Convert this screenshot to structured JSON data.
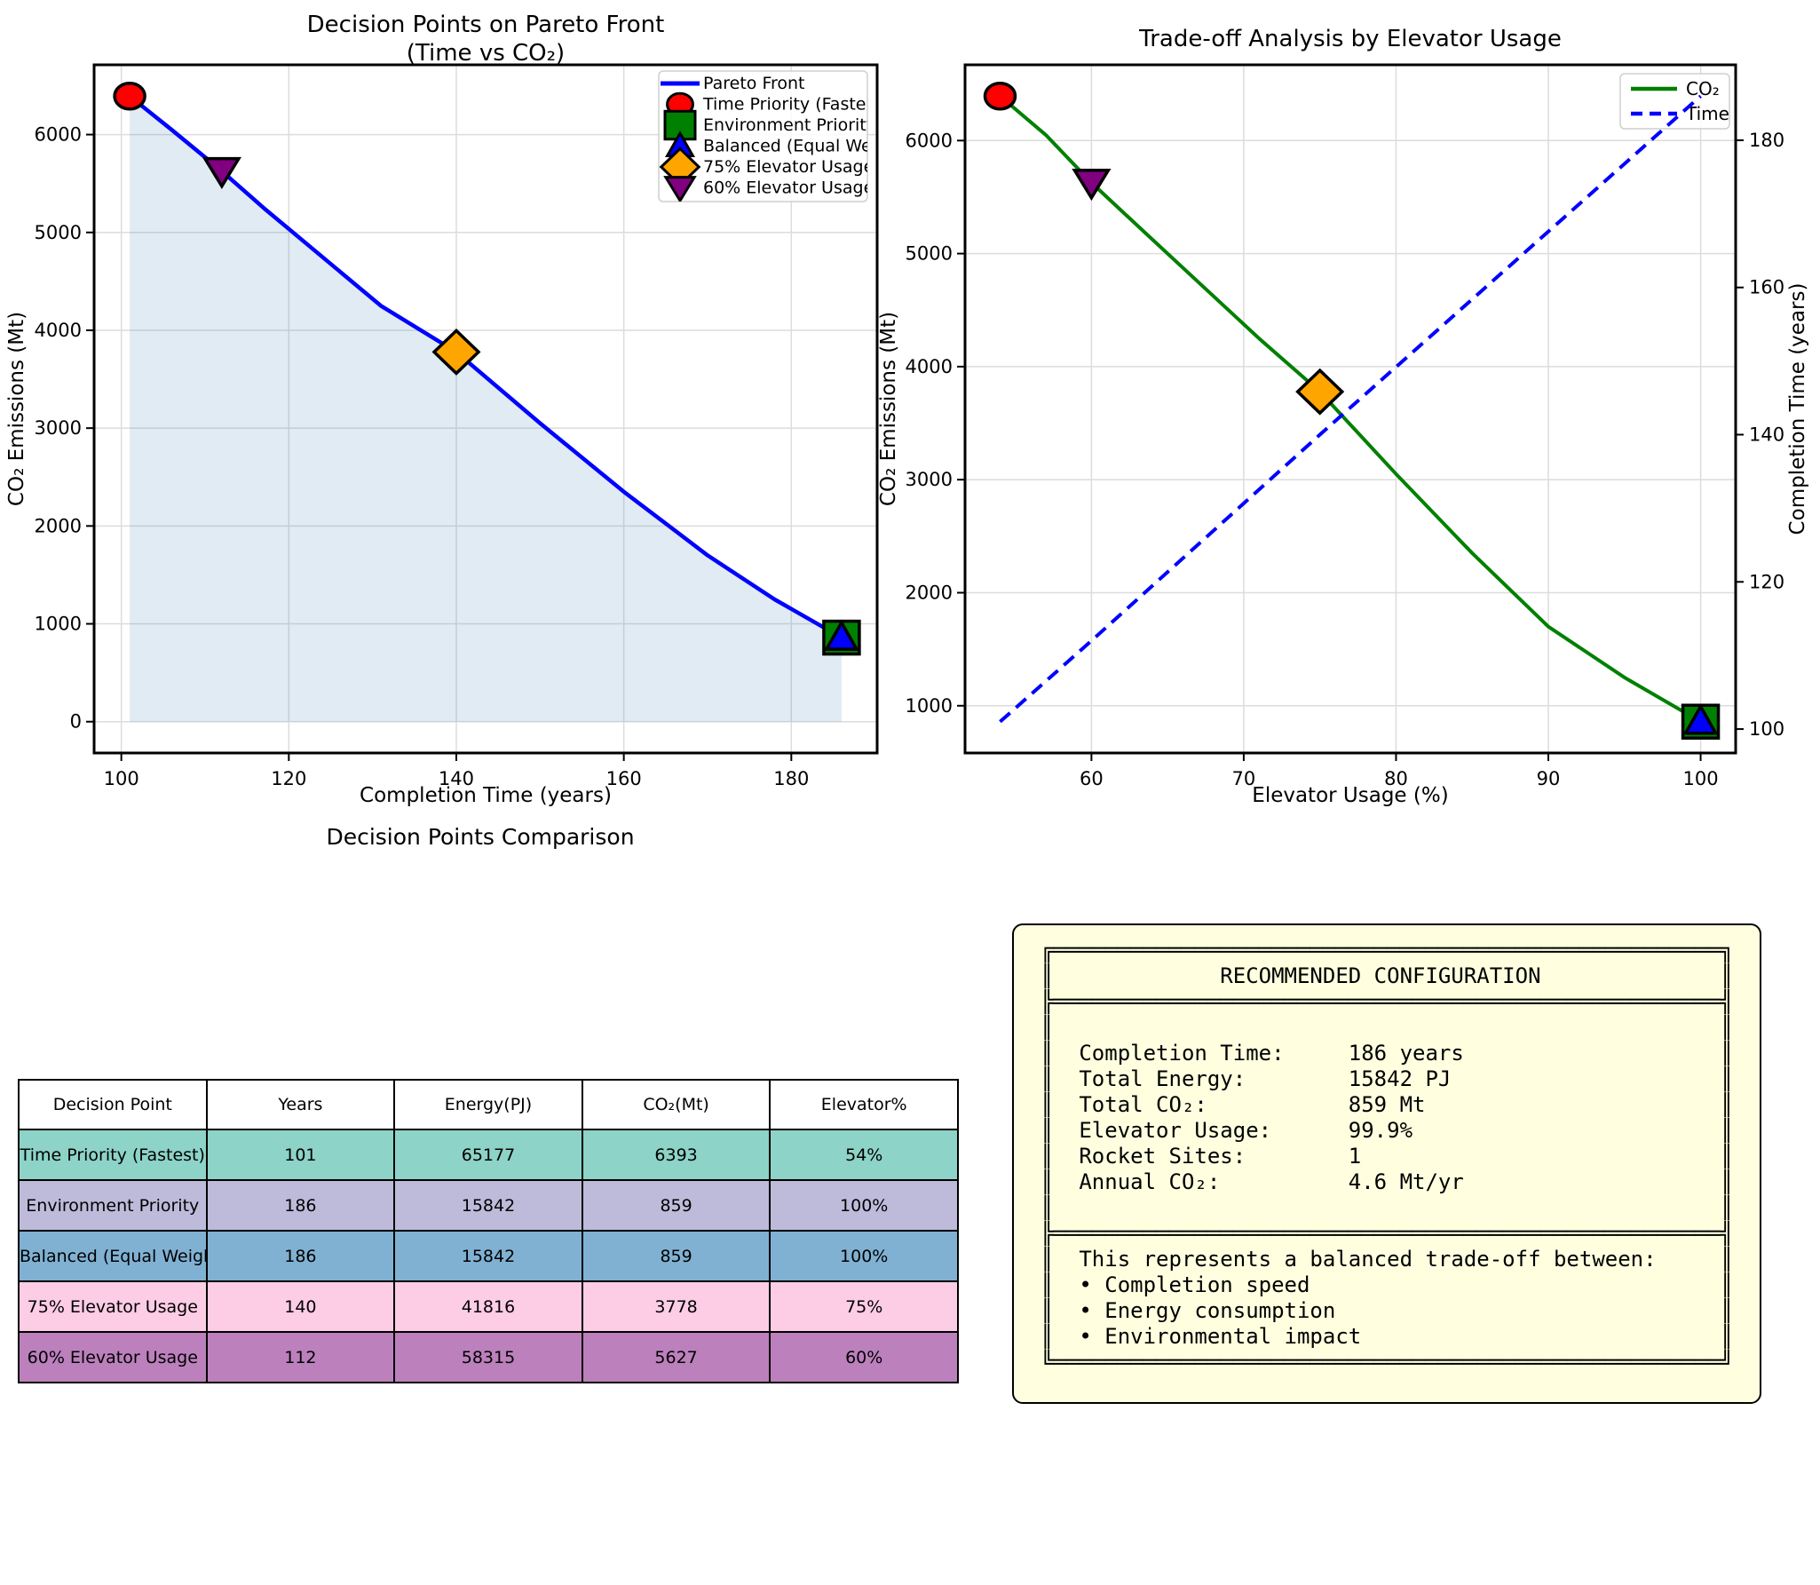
{
  "figure": {
    "background": "#ffffff",
    "grid_color": "#dcdcdc"
  },
  "chart_data": [
    {
      "id": "chart1",
      "type": "line",
      "title": "Decision Points on Pareto Front",
      "title_line2": "(Time vs CO₂)",
      "xlabel": "Completion Time (years)",
      "ylabel": "CO₂ Emissions (Mt)",
      "xlim": [
        96.75,
        190.25
      ],
      "ylim": [
        -320,
        6713
      ],
      "xticks": [
        100,
        120,
        140,
        160,
        180
      ],
      "yticks": [
        0,
        1000,
        2000,
        3000,
        4000,
        5000,
        6000
      ],
      "grid": true,
      "legend_position": "upper right",
      "series": [
        {
          "name": "Pareto Front",
          "color": "#0000ff",
          "dash": false,
          "width": 4.5,
          "fill_to_y": 0,
          "fill_color": "rgba(70,130,180,0.16)",
          "x": [
            101,
            106,
            112,
            117,
            124,
            131,
            140,
            150,
            160,
            170,
            178,
            186
          ],
          "y": [
            6393,
            6050,
            5627,
            5250,
            4750,
            4250,
            3778,
            3050,
            2350,
            1700,
            1250,
            859
          ]
        }
      ],
      "points": [
        {
          "name": "Time Priority (Fastest)",
          "legend_label": "Time Priority (Faste",
          "marker": "circle",
          "color": "#ff0000",
          "x": 101,
          "y": 6393
        },
        {
          "name": "Environment Priority",
          "legend_label": "Environment Priority",
          "marker": "square",
          "color": "#008000",
          "x": 186,
          "y": 859
        },
        {
          "name": "Balanced (Equal Weights)",
          "legend_label": "Balanced (Equal Weig",
          "marker": "triangle-up",
          "color": "#0000ff",
          "x": 186,
          "y": 859
        },
        {
          "name": "75% Elevator Usage",
          "legend_label": "75% Elevator Usage",
          "marker": "diamond",
          "color": "#ffa500",
          "x": 140,
          "y": 3778
        },
        {
          "name": "60% Elevator Usage",
          "legend_label": "60% Elevator Usage",
          "marker": "triangle-down",
          "color": "#800080",
          "x": 112,
          "y": 5627
        }
      ],
      "legend_line_label": "Pareto Front"
    },
    {
      "id": "chart2",
      "type": "line",
      "title": "Trade-off Analysis by Elevator Usage",
      "xlabel": "Elevator Usage (%)",
      "ylabel_left": "CO₂ Emissions (Mt)",
      "ylabel_right": "Completion Time (years)",
      "ylabel_left_color": "#008000",
      "ylabel_right_color": "#0000ff",
      "xlim": [
        51.7,
        102.3
      ],
      "ylim_left": [
        582,
        6670
      ],
      "ylim_right": [
        96.75,
        190.25
      ],
      "xticks": [
        60,
        70,
        80,
        90,
        100
      ],
      "yticks_left": [
        1000,
        2000,
        3000,
        4000,
        5000,
        6000
      ],
      "yticks_right": [
        100,
        120,
        140,
        160,
        180
      ],
      "grid": true,
      "legend_position": "upper right",
      "series": [
        {
          "name": "CO₂",
          "axis": "left",
          "color": "#008000",
          "dash": false,
          "width": 4,
          "x": [
            54,
            57,
            60,
            63,
            67,
            71,
            75,
            80,
            85,
            90,
            95,
            100
          ],
          "y": [
            6393,
            6050,
            5627,
            5250,
            4750,
            4250,
            3778,
            3050,
            2350,
            1700,
            1250,
            859
          ]
        },
        {
          "name": "Time",
          "axis": "right",
          "color": "#0000ff",
          "dash": true,
          "width": 4,
          "over_legend": true,
          "x": [
            54,
            60,
            75,
            100
          ],
          "y": [
            101,
            112,
            140,
            186
          ]
        }
      ],
      "points": [
        {
          "name": "Time Priority (Fastest)",
          "marker": "circle",
          "color": "#ff0000",
          "x": 54,
          "y": 6393
        },
        {
          "name": "60% Elevator Usage",
          "marker": "triangle-down",
          "color": "#800080",
          "x": 60,
          "y": 5627
        },
        {
          "name": "75% Elevator Usage",
          "marker": "diamond",
          "color": "#ffa500",
          "x": 75,
          "y": 3778
        },
        {
          "name": "Environment Priority",
          "marker": "square",
          "color": "#008000",
          "x": 100,
          "y": 859
        },
        {
          "name": "Balanced (Equal Weights)",
          "marker": "triangle-up",
          "color": "#0000ff",
          "x": 100,
          "y": 859
        }
      ]
    },
    {
      "id": "comparison-table",
      "type": "table",
      "title": "Decision Points Comparison",
      "headers": [
        "Decision Point",
        "Years",
        "Energy(PJ)",
        "CO₂(Mt)",
        "Elevator%"
      ],
      "rows": [
        {
          "cells": [
            "Time Priority (Fastest)",
            "101",
            "65177",
            "6393",
            "54%"
          ],
          "color": "#8dd3c7"
        },
        {
          "cells": [
            "Environment Priority",
            "186",
            "15842",
            "859",
            "100%"
          ],
          "color": "#bebada"
        },
        {
          "cells": [
            "Balanced (Equal Weights",
            "186",
            "15842",
            "859",
            "100%"
          ],
          "color": "#80b1d3"
        },
        {
          "cells": [
            "75% Elevator Usage",
            "140",
            "41816",
            "3778",
            "75%"
          ],
          "color": "#fccde5"
        },
        {
          "cells": [
            "60% Elevator Usage",
            "112",
            "58315",
            "5627",
            "60%"
          ],
          "color": "#bc80bd"
        }
      ]
    }
  ],
  "recommended_config": {
    "bg_color": "#ffffe0",
    "title": "RECOMMENDED CONFIGURATION",
    "fields": [
      {
        "label": "Completion Time",
        "value": "186 years"
      },
      {
        "label": "Total Energy",
        "value": "15842 PJ"
      },
      {
        "label": "Total CO₂",
        "value": "859 Mt"
      },
      {
        "label": "Elevator Usage",
        "value": "99.9%"
      },
      {
        "label": "Rocket Sites",
        "value": "1"
      },
      {
        "label": "Annual CO₂",
        "value": "4.6 Mt/yr"
      }
    ],
    "footer_heading": "This represents a balanced trade-off between:",
    "bullets": [
      "Completion speed",
      "Energy consumption",
      "Environmental impact"
    ]
  }
}
